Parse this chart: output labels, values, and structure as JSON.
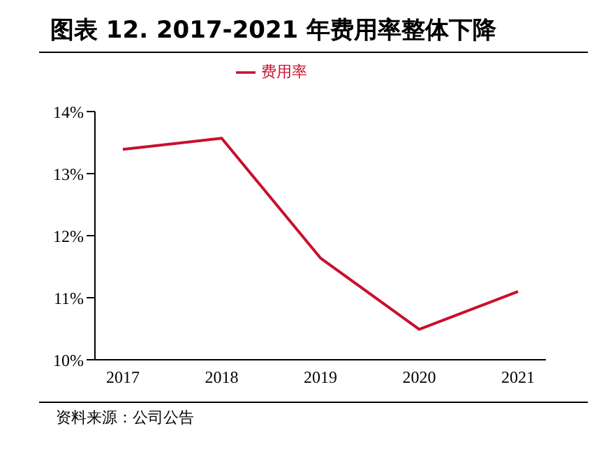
{
  "chart_data": {
    "type": "line",
    "title": "图表 12. 2017-2021 年费用率整体下降",
    "categories": [
      "2017",
      "2018",
      "2019",
      "2020",
      "2021"
    ],
    "series": [
      {
        "name": "费用率",
        "color": "#c8102e",
        "values": [
          13.39,
          13.57,
          11.64,
          10.49,
          11.1
        ]
      }
    ],
    "ylim": [
      10,
      14
    ],
    "yticks": [
      {
        "value": 10,
        "label": "10%"
      },
      {
        "value": 11,
        "label": "11%"
      },
      {
        "value": 12,
        "label": "12%"
      },
      {
        "value": 13,
        "label": "13%"
      },
      {
        "value": 14,
        "label": "14%"
      }
    ],
    "grid": false,
    "legend": "top",
    "marker": "none",
    "annotations": [
      "资料来源：公司公告"
    ]
  }
}
